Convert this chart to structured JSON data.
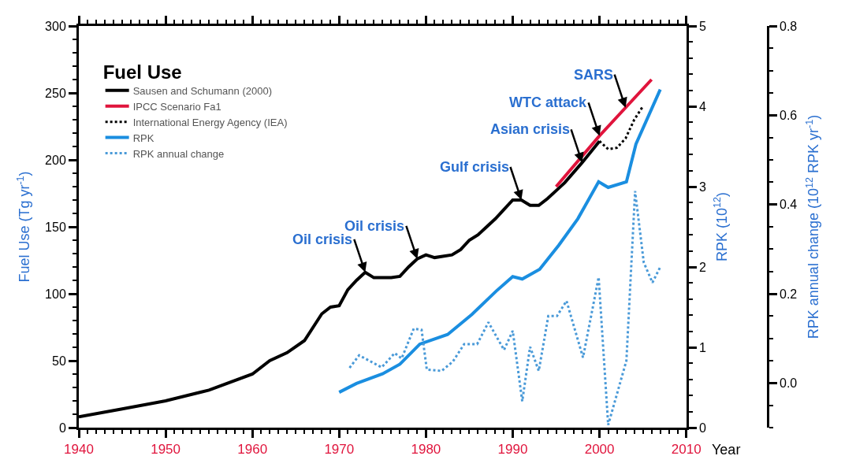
{
  "chart_data": {
    "type": "line",
    "xlabel": "Year",
    "ylabel": "Fuel Use (Tg yr$^{-1}$)",
    "y2label": "RPK (10$^{12}$)",
    "y3label": "RPK annual change (10$^{12}$ RPK yr$^{-1}$)",
    "legend_title": "Fuel Use",
    "legend": "top left",
    "marker": "none",
    "xlim": [
      1940,
      2010
    ],
    "xticks": [
      1940,
      1950,
      1960,
      1970,
      1980,
      1990,
      2000,
      2010
    ],
    "ylim": [
      0,
      300
    ],
    "yticks": [
      0,
      50,
      100,
      150,
      200,
      250,
      300
    ],
    "y2lim": [
      0,
      5
    ],
    "y2ticks": [
      0,
      1,
      2,
      3,
      4,
      5
    ],
    "y3lim": [
      -0.1,
      0.8
    ],
    "y3ticks": [
      {
        "value": 0,
        "label": "0.0"
      },
      0.2,
      0.4,
      0.6,
      0.8
    ],
    "series": [
      {
        "name": "Sausen and Schumann (2000)",
        "color": "#000000",
        "line_style": "solid",
        "x": [
          1940,
          1945,
          1950,
          1955,
          1960,
          1962,
          1964,
          1966,
          1968,
          1969,
          1970,
          1971,
          1972,
          1973,
          1974,
          1976,
          1977,
          1978,
          1979,
          1980,
          1981,
          1983,
          1984,
          1985,
          1986,
          1987,
          1988,
          1989,
          1990,
          1991,
          1992,
          1993,
          1994,
          1995,
          1996,
          1998,
          2000
        ],
        "values": [
          8,
          14,
          20,
          28,
          40,
          50,
          56,
          65,
          85,
          90,
          91,
          103,
          110,
          116,
          112,
          112,
          113,
          120,
          126,
          129,
          127,
          129,
          133,
          140,
          144,
          150,
          156,
          163,
          170,
          170,
          166,
          166,
          171,
          177,
          183,
          198,
          214
        ]
      },
      {
        "name": "IPCC Scenario Fa1",
        "color": "#e0143c",
        "line_style": "solid",
        "x": [
          1995,
          2000,
          2006
        ],
        "values": [
          180,
          218,
          260
        ]
      },
      {
        "name": "International Energy Agency (IEA)",
        "color": "#000000",
        "line_style": "dotted",
        "x": [
          2000,
          2001,
          2002,
          2003,
          2004,
          2005
        ],
        "values": [
          214,
          208,
          209,
          216,
          230,
          240
        ]
      },
      {
        "name": "RPK",
        "color": "#1a8ee0",
        "line_style": "solid",
        "axis": "y2",
        "x": [
          1970,
          1972,
          1975,
          1977,
          1979.3,
          1982.5,
          1985.3,
          1988.1,
          1990,
          1991.1,
          1993.1,
          1995.3,
          1997.5,
          1999.9,
          2001,
          2003.1,
          2004.2,
          2007
        ],
        "values": [
          0.44,
          0.55,
          0.67,
          0.79,
          1.04,
          1.16,
          1.41,
          1.7,
          1.88,
          1.85,
          1.97,
          2.27,
          2.6,
          3.06,
          2.99,
          3.06,
          3.53,
          4.21
        ]
      },
      {
        "name": "RPK annual change",
        "color": "#4a9ad8",
        "line_style": "dotted",
        "axis": "y3",
        "x": [
          1971.2,
          1972.3,
          1974.9,
          1976.4,
          1977.2,
          1978.6,
          1979.5,
          1980.1,
          1981.8,
          1983.1,
          1984.4,
          1985.9,
          1987.2,
          1989,
          1990,
          1991.1,
          1992,
          1993,
          1994.1,
          1995.1,
          1996.2,
          1998.1,
          1999.9,
          2001,
          2003.1,
          2004.1,
          2005.1,
          2006.1,
          2007
        ],
        "values": [
          0.034,
          0.062,
          0.035,
          0.067,
          0.055,
          0.122,
          0.119,
          0.03,
          0.027,
          0.048,
          0.087,
          0.087,
          0.136,
          0.074,
          0.117,
          -0.041,
          0.081,
          0.027,
          0.15,
          0.15,
          0.184,
          0.057,
          0.237,
          -0.094,
          0.05,
          0.43,
          0.27,
          0.225,
          0.26
        ]
      }
    ],
    "annotations": [
      {
        "text": "Oil crisis",
        "x": 1973,
        "y": 116
      },
      {
        "text": "Oil crisis",
        "x": 1979,
        "y": 126
      },
      {
        "text": "Gulf crisis",
        "x": 1991,
        "y": 170
      },
      {
        "text": "Asian crisis",
        "x": 1998,
        "y": 198
      },
      {
        "text": "WTC attack",
        "x": 2000,
        "y": 218
      },
      {
        "text": "SARS",
        "x": 2003,
        "y": 239
      }
    ]
  }
}
